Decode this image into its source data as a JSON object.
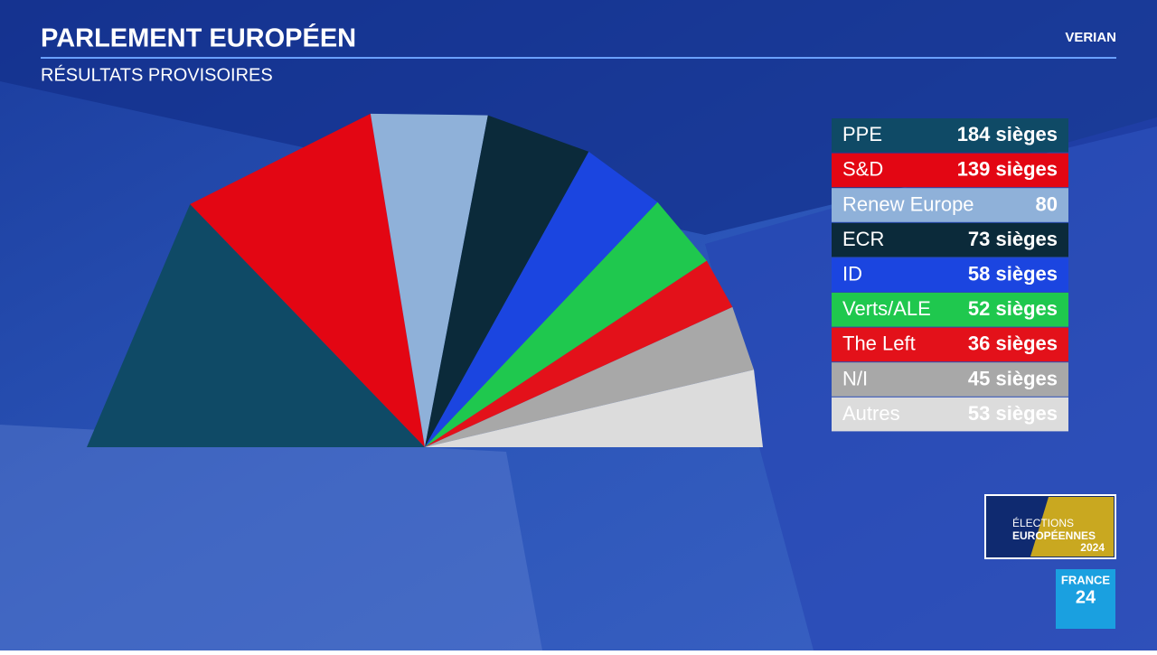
{
  "chart_data": {
    "type": "semicircle",
    "title": "PARLEMENT EUROPÉEN",
    "subtitle": "RÉSULTATS PROVISOIRES",
    "source": "VERIAN",
    "categories": [
      "PPE",
      "S&D",
      "Renew Europe",
      "ECR",
      "ID",
      "Verts/ALE",
      "The Left",
      "N/I",
      "Autres"
    ],
    "values": [
      184,
      139,
      80,
      73,
      58,
      52,
      36,
      45,
      53
    ],
    "value_labels": [
      "184 sièges",
      "139 sièges",
      "80",
      "73 sièges",
      "58 sièges",
      "52 sièges",
      "36 sièges",
      "45 sièges",
      "53 sièges"
    ],
    "colors": [
      "#0f4a66",
      "#e30613",
      "#8fb1d9",
      "#0b2a3a",
      "#1b45e0",
      "#1fc84e",
      "#e3111a",
      "#a8a8a8",
      "#dcdcdc"
    ]
  },
  "branding": {
    "event": [
      "ÉLECTIONS",
      "EUROPÉENNES",
      "2024"
    ],
    "channel": [
      "FRANCE",
      "24"
    ]
  }
}
